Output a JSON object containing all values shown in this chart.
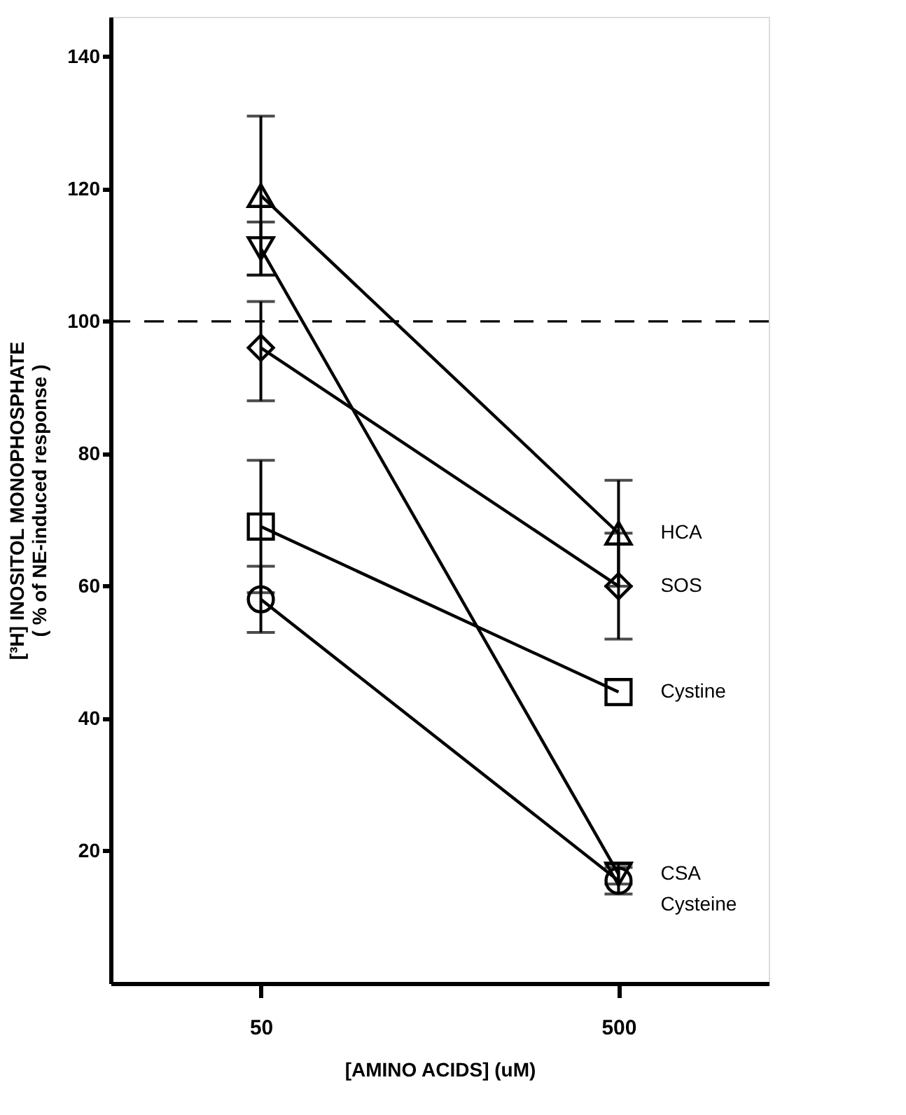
{
  "chart_data": {
    "type": "line",
    "xlabel": "[AMINO ACIDS]  (uM)",
    "ylabel": "[³H] INOSITOL MONOPHOSPHATE\n( % of NE-induced response )",
    "categories": [
      "50",
      "500"
    ],
    "ylim": [
      0,
      146
    ],
    "yticks": [
      20,
      40,
      60,
      80,
      100,
      120,
      140
    ],
    "series": [
      {
        "name": "HCA",
        "color": "#000000",
        "marker": "triangle",
        "values": [
          119,
          68
        ],
        "errors": [
          12,
          8
        ]
      },
      {
        "name": "CSA",
        "color": "#000000",
        "marker": "triangle-down",
        "values": [
          111,
          16.5
        ],
        "errors": [
          4,
          1.5
        ]
      },
      {
        "name": "SOS",
        "color": "#000000",
        "marker": "diamond",
        "values": [
          96,
          60
        ],
        "errors": [
          [
            88,
            103
          ],
          8
        ]
      },
      {
        "name": "Cystine",
        "color": "#000000",
        "marker": "square",
        "values": [
          69,
          44
        ],
        "errors": [
          10,
          null
        ]
      },
      {
        "name": "Cysteine",
        "color": "#000000",
        "marker": "circle",
        "values": [
          58,
          15.5
        ],
        "errors": [
          5,
          2
        ]
      }
    ],
    "ref_lines": [
      {
        "axis": "y",
        "value": 100,
        "line_style": "dashed"
      }
    ],
    "legend": false,
    "grid": false
  }
}
